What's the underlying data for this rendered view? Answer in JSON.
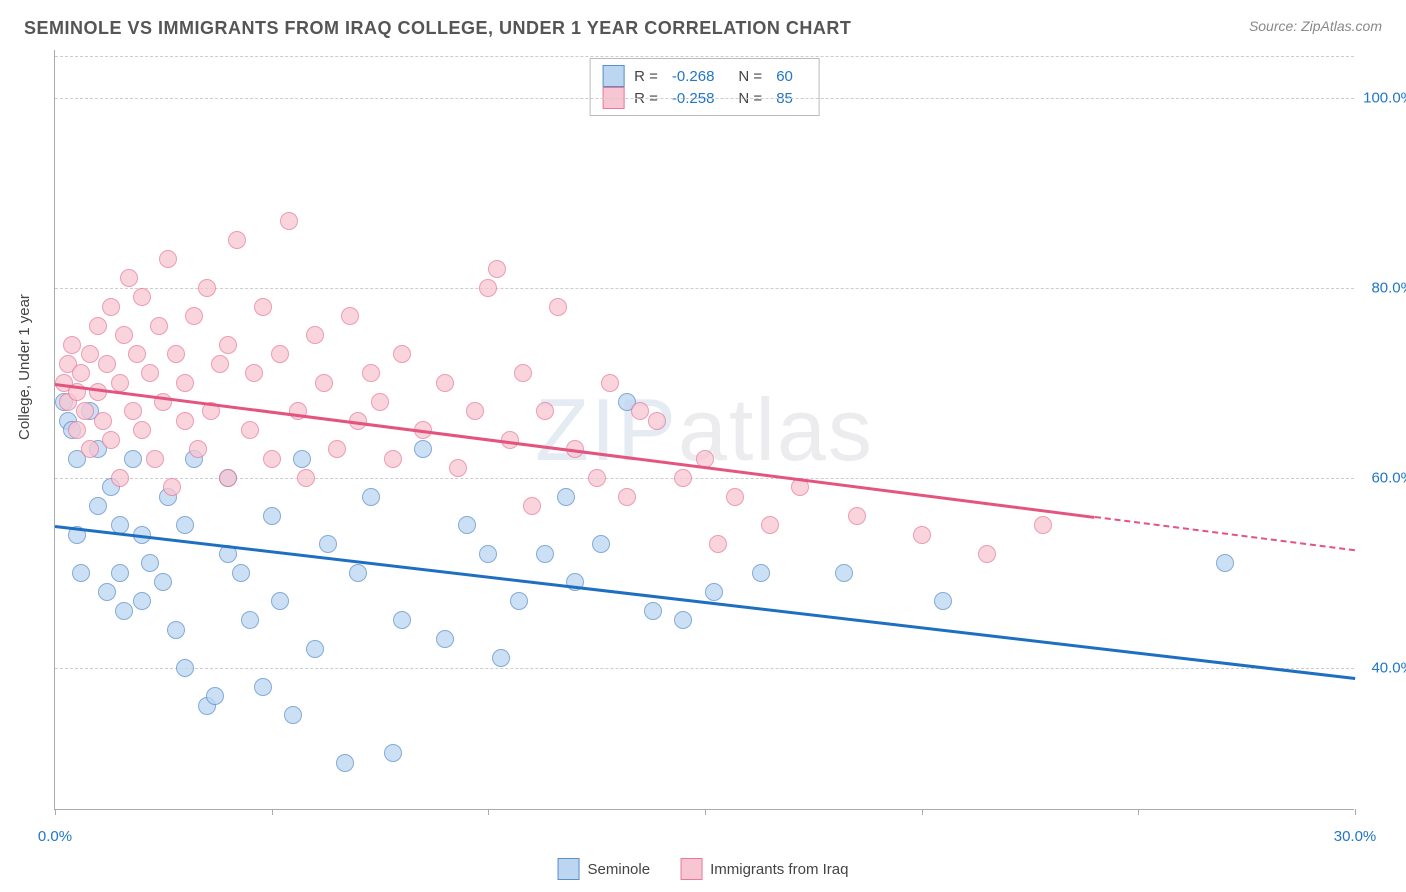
{
  "title": "SEMINOLE VS IMMIGRANTS FROM IRAQ COLLEGE, UNDER 1 YEAR CORRELATION CHART",
  "source": "Source: ZipAtlas.com",
  "ylabel": "College, Under 1 year",
  "watermark_a": "ZIP",
  "watermark_b": "atlas",
  "chart": {
    "type": "scatter",
    "xlim": [
      0,
      30
    ],
    "ylim": [
      25,
      105
    ],
    "xticks": [
      0,
      5,
      10,
      15,
      20,
      25,
      30
    ],
    "xtick_labels": [
      "0.0%",
      "",
      "",
      "",
      "",
      "",
      "30.0%"
    ],
    "yticks": [
      40,
      60,
      80,
      100
    ],
    "ytick_labels": [
      "40.0%",
      "60.0%",
      "80.0%",
      "100.0%"
    ],
    "grid_color": "#cccccc",
    "background_color": "#ffffff",
    "axis_color": "#aaaaaa",
    "label_color": "#2176c7",
    "marker_size": 18,
    "series": [
      {
        "name": "Seminole",
        "fill": "#bcd6f2",
        "stroke": "#5a8fc9",
        "trend_color": "#1f6fc0",
        "R": "-0.268",
        "N": "60",
        "trend": {
          "x1": 0,
          "y1": 55,
          "x2": 30,
          "y2": 39
        },
        "points": [
          [
            0.2,
            68
          ],
          [
            0.3,
            66
          ],
          [
            0.4,
            65
          ],
          [
            0.5,
            62
          ],
          [
            0.5,
            54
          ],
          [
            0.6,
            50
          ],
          [
            0.8,
            67
          ],
          [
            1.0,
            63
          ],
          [
            1.0,
            57
          ],
          [
            1.2,
            48
          ],
          [
            1.3,
            59
          ],
          [
            1.5,
            55
          ],
          [
            1.5,
            50
          ],
          [
            1.6,
            46
          ],
          [
            1.8,
            62
          ],
          [
            2.0,
            47
          ],
          [
            2.0,
            54
          ],
          [
            2.2,
            51
          ],
          [
            2.5,
            49
          ],
          [
            2.6,
            58
          ],
          [
            2.8,
            44
          ],
          [
            3.0,
            40
          ],
          [
            3.0,
            55
          ],
          [
            3.2,
            62
          ],
          [
            3.5,
            36
          ],
          [
            3.7,
            37
          ],
          [
            4.0,
            52
          ],
          [
            4.0,
            60
          ],
          [
            4.3,
            50
          ],
          [
            4.5,
            45
          ],
          [
            4.8,
            38
          ],
          [
            5.0,
            56
          ],
          [
            5.2,
            47
          ],
          [
            5.5,
            35
          ],
          [
            5.7,
            62
          ],
          [
            6.0,
            42
          ],
          [
            6.3,
            53
          ],
          [
            6.7,
            30
          ],
          [
            7.0,
            50
          ],
          [
            7.3,
            58
          ],
          [
            7.8,
            31
          ],
          [
            8.0,
            45
          ],
          [
            8.5,
            63
          ],
          [
            9.0,
            43
          ],
          [
            9.5,
            55
          ],
          [
            10.0,
            52
          ],
          [
            10.3,
            41
          ],
          [
            10.7,
            47
          ],
          [
            11.3,
            52
          ],
          [
            11.8,
            58
          ],
          [
            12.0,
            49
          ],
          [
            12.6,
            53
          ],
          [
            13.2,
            68
          ],
          [
            13.8,
            46
          ],
          [
            14.5,
            45
          ],
          [
            15.2,
            48
          ],
          [
            16.3,
            50
          ],
          [
            18.2,
            50
          ],
          [
            20.5,
            47
          ],
          [
            27.0,
            51
          ]
        ]
      },
      {
        "name": "Immigrants from Iraq",
        "fill": "#f7c6d2",
        "stroke": "#e77a9a",
        "trend_color": "#e3547e",
        "R": "-0.258",
        "N": "85",
        "trend": {
          "x1": 0,
          "y1": 70,
          "x2": 24,
          "y2": 56
        },
        "trend_dash": {
          "x1": 24,
          "y1": 56,
          "x2": 30,
          "y2": 52.5
        },
        "points": [
          [
            0.2,
            70
          ],
          [
            0.3,
            72
          ],
          [
            0.3,
            68
          ],
          [
            0.4,
            74
          ],
          [
            0.5,
            69
          ],
          [
            0.5,
            65
          ],
          [
            0.6,
            71
          ],
          [
            0.7,
            67
          ],
          [
            0.8,
            73
          ],
          [
            0.8,
            63
          ],
          [
            1.0,
            76
          ],
          [
            1.0,
            69
          ],
          [
            1.1,
            66
          ],
          [
            1.2,
            72
          ],
          [
            1.3,
            78
          ],
          [
            1.3,
            64
          ],
          [
            1.5,
            70
          ],
          [
            1.5,
            60
          ],
          [
            1.6,
            75
          ],
          [
            1.7,
            81
          ],
          [
            1.8,
            67
          ],
          [
            1.9,
            73
          ],
          [
            2.0,
            65
          ],
          [
            2.0,
            79
          ],
          [
            2.2,
            71
          ],
          [
            2.3,
            62
          ],
          [
            2.4,
            76
          ],
          [
            2.5,
            68
          ],
          [
            2.6,
            83
          ],
          [
            2.7,
            59
          ],
          [
            2.8,
            73
          ],
          [
            3.0,
            66
          ],
          [
            3.0,
            70
          ],
          [
            3.2,
            77
          ],
          [
            3.3,
            63
          ],
          [
            3.5,
            80
          ],
          [
            3.6,
            67
          ],
          [
            3.8,
            72
          ],
          [
            4.0,
            60
          ],
          [
            4.0,
            74
          ],
          [
            4.2,
            85
          ],
          [
            4.5,
            65
          ],
          [
            4.6,
            71
          ],
          [
            4.8,
            78
          ],
          [
            5.0,
            62
          ],
          [
            5.2,
            73
          ],
          [
            5.4,
            87
          ],
          [
            5.6,
            67
          ],
          [
            5.8,
            60
          ],
          [
            6.0,
            75
          ],
          [
            6.2,
            70
          ],
          [
            6.5,
            63
          ],
          [
            6.8,
            77
          ],
          [
            7.0,
            66
          ],
          [
            7.3,
            71
          ],
          [
            7.5,
            68
          ],
          [
            7.8,
            62
          ],
          [
            8.0,
            73
          ],
          [
            8.5,
            65
          ],
          [
            9.0,
            70
          ],
          [
            9.3,
            61
          ],
          [
            9.7,
            67
          ],
          [
            10.0,
            80
          ],
          [
            10.2,
            82
          ],
          [
            10.5,
            64
          ],
          [
            10.8,
            71
          ],
          [
            11.0,
            57
          ],
          [
            11.3,
            67
          ],
          [
            11.6,
            78
          ],
          [
            12.0,
            63
          ],
          [
            12.5,
            60
          ],
          [
            12.8,
            70
          ],
          [
            13.2,
            58
          ],
          [
            13.5,
            67
          ],
          [
            13.9,
            66
          ],
          [
            14.5,
            60
          ],
          [
            15.0,
            62
          ],
          [
            15.3,
            53
          ],
          [
            15.7,
            58
          ],
          [
            16.5,
            55
          ],
          [
            17.2,
            59
          ],
          [
            18.5,
            56
          ],
          [
            20.0,
            54
          ],
          [
            21.5,
            52
          ],
          [
            22.8,
            55
          ]
        ]
      }
    ]
  },
  "legend_bottom": [
    {
      "label": "Seminole",
      "fill": "#bcd6f2",
      "stroke": "#5a8fc9"
    },
    {
      "label": "Immigrants from Iraq",
      "fill": "#f7c6d2",
      "stroke": "#e77a9a"
    }
  ]
}
